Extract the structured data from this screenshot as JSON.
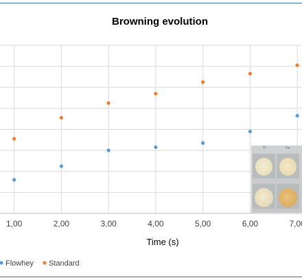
{
  "chart_data": {
    "type": "scatter",
    "title": "Browning evolution",
    "xlabel": "Time (s)",
    "ylabel": "",
    "x_ticks": [
      "1,00",
      "2,00",
      "3,00",
      "4,00",
      "5,00",
      "6,00",
      "7,00"
    ],
    "xlim": [
      0.7,
      7.1
    ],
    "ylim": [
      0,
      8
    ],
    "grid": true,
    "legend_position": "bottom-left",
    "series": [
      {
        "name": "Flowhey",
        "color": "#5b9bd5",
        "points": [
          {
            "x": 1,
            "y": 1.6
          },
          {
            "x": 2,
            "y": 2.25
          },
          {
            "x": 3,
            "y": 3.0
          },
          {
            "x": 4,
            "y": 3.15
          },
          {
            "x": 5,
            "y": 3.35
          },
          {
            "x": 6,
            "y": 3.9
          },
          {
            "x": 7,
            "y": 4.65
          }
        ]
      },
      {
        "name": "Standard",
        "color": "#ed7d31",
        "points": [
          {
            "x": 1,
            "y": 3.55
          },
          {
            "x": 2,
            "y": 4.55
          },
          {
            "x": 3,
            "y": 5.25
          },
          {
            "x": 4,
            "y": 5.7
          },
          {
            "x": 5,
            "y": 6.25
          },
          {
            "x": 6,
            "y": 6.65
          },
          {
            "x": 7,
            "y": 7.05
          }
        ]
      }
    ]
  },
  "photo": {
    "icon": "sample-photo-icon",
    "labels": [
      "Tf",
      "Fw"
    ]
  },
  "colors": {
    "grid": "#d9d9d9",
    "frame": "#3b6d8a"
  }
}
